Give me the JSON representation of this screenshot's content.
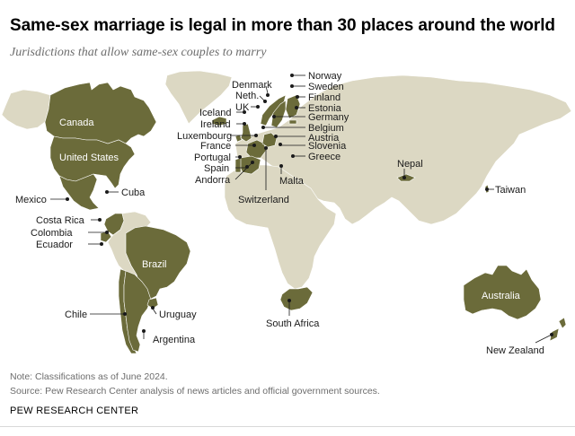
{
  "title": "Same-sex marriage is legal in more than 30 places around the world",
  "subtitle": "Jurisdictions that allow same-sex couples to marry",
  "note": "Note: Classifications as of June 2024.",
  "source": "Source: Pew Research Center analysis of news articles and official government sources.",
  "brand": "PEW RESEARCH CENTER",
  "colors": {
    "legal": "#6b6b3a",
    "other": "#dcd8c3",
    "ocean": "#ffffff"
  },
  "map": {
    "regions": [
      {
        "key": "greenland",
        "name": "Greenland",
        "status": "other"
      },
      {
        "key": "alaska",
        "name": "Alaska",
        "status": "other"
      },
      {
        "key": "canada",
        "name": "Canada",
        "status": "legal"
      },
      {
        "key": "united_states",
        "name": "United States",
        "status": "legal"
      },
      {
        "key": "mexico",
        "name": "Mexico",
        "status": "legal"
      },
      {
        "key": "colombia",
        "name": "Colombia",
        "status": "legal"
      },
      {
        "key": "ecuador",
        "name": "Ecuador",
        "status": "legal"
      },
      {
        "key": "brazil",
        "name": "Brazil",
        "status": "legal"
      },
      {
        "key": "south_america_other",
        "name": "South America (other)",
        "status": "other"
      },
      {
        "key": "chile",
        "name": "Chile",
        "status": "legal"
      },
      {
        "key": "argentina",
        "name": "Argentina",
        "status": "legal"
      },
      {
        "key": "uruguay",
        "name": "Uruguay",
        "status": "legal"
      },
      {
        "key": "iceland",
        "name": "Iceland",
        "status": "legal"
      },
      {
        "key": "uk",
        "name": "UK",
        "status": "legal"
      },
      {
        "key": "ireland",
        "name": "Ireland",
        "status": "legal"
      },
      {
        "key": "spain",
        "name": "Spain",
        "status": "legal"
      },
      {
        "key": "portugal",
        "name": "Portugal",
        "status": "legal"
      },
      {
        "key": "france",
        "name": "France",
        "status": "legal"
      },
      {
        "key": "norway",
        "name": "Norway",
        "status": "legal"
      },
      {
        "key": "sweden",
        "name": "Sweden",
        "status": "legal"
      },
      {
        "key": "finland",
        "name": "Finland",
        "status": "legal"
      },
      {
        "key": "estonia",
        "name": "Estonia",
        "status": "legal"
      },
      {
        "key": "germany",
        "name": "Germany",
        "status": "legal"
      },
      {
        "key": "eurasia",
        "name": "Eurasia (other)",
        "status": "other"
      },
      {
        "key": "africa",
        "name": "Africa (other)",
        "status": "other"
      },
      {
        "key": "south_africa",
        "name": "South Africa",
        "status": "legal"
      },
      {
        "key": "nepal",
        "name": "Nepal",
        "status": "legal"
      },
      {
        "key": "taiwan",
        "name": "Taiwan",
        "status": "legal"
      },
      {
        "key": "australia",
        "name": "Australia",
        "status": "legal"
      },
      {
        "key": "new_zealand",
        "name": "New Zealand",
        "status": "legal"
      }
    ],
    "inner_labels": {
      "canada": "Canada",
      "united_states": "United States",
      "brazil": "Brazil",
      "australia": "Australia"
    },
    "callouts": {
      "mexico": "Mexico",
      "cuba": "Cuba",
      "costa_rica": "Costa Rica",
      "colombia": "Colombia",
      "ecuador": "Ecuador",
      "chile": "Chile",
      "uruguay": "Uruguay",
      "argentina": "Argentina",
      "south_africa": "South Africa",
      "nepal": "Nepal",
      "taiwan": "Taiwan",
      "new_zealand": "New Zealand",
      "iceland": "Iceland",
      "ireland": "Ireland",
      "uk": "UK",
      "neth": "Neth.",
      "denmark": "Denmark",
      "norway": "Norway",
      "sweden": "Sweden",
      "finland": "Finland",
      "estonia": "Estonia",
      "germany": "Germany",
      "belgium": "Belgium",
      "austria": "Austria",
      "slovenia": "Slovenia",
      "greece": "Greece",
      "luxembourg": "Luxembourg",
      "france": "France",
      "portugal": "Portugal",
      "spain": "Spain",
      "andorra": "Andorra",
      "malta": "Malta",
      "switzerland": "Switzerland"
    }
  }
}
